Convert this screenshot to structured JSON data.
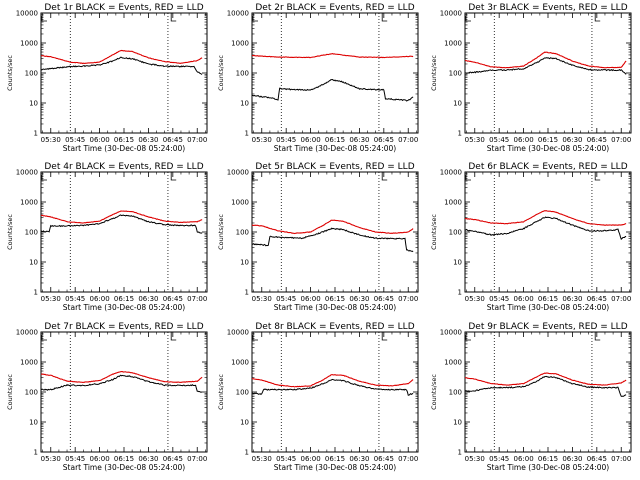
{
  "colors": {
    "events": "#000000",
    "lld": "#dd0000",
    "background": "#ffffff"
  },
  "chart_data": {
    "type": "line",
    "layout": "3x3 grid",
    "yscale": "log",
    "ylim": [
      1,
      10000
    ],
    "yticks": [
      "1",
      "10",
      "100",
      "1000",
      "10000"
    ],
    "ylabel": "Counts/sec",
    "xlabel": "Start Time (30-Dec-08 05:24:00)",
    "xlim": [
      "05:24",
      "07:06"
    ],
    "xticks": [
      "05:30",
      "05:45",
      "06:00",
      "06:15",
      "06:30",
      "06:45",
      "07:00"
    ],
    "marker_lines": [
      "05:42",
      "06:42"
    ],
    "top_marker": "06:44",
    "grid": false,
    "legend": "none",
    "panels": [
      {
        "title": "Det 1r BLACK = Events, RED = LLD",
        "series": [
          {
            "name": "Events",
            "color": "#000000",
            "x": [
              "05:24",
              "05:30",
              "05:42",
              "05:50",
              "06:00",
              "06:08",
              "06:13",
              "06:20",
              "06:30",
              "06:40",
              "06:50",
              "06:58",
              "07:00",
              "07:03"
            ],
            "y": [
              130,
              140,
              165,
              170,
              185,
              250,
              330,
              300,
              200,
              170,
              165,
              165,
              110,
              90
            ]
          },
          {
            "name": "LLD",
            "color": "#dd0000",
            "x": [
              "05:24",
              "05:30",
              "05:42",
              "05:50",
              "06:00",
              "06:08",
              "06:13",
              "06:20",
              "06:30",
              "06:40",
              "06:50",
              "07:00",
              "07:03"
            ],
            "y": [
              380,
              350,
              230,
              210,
              230,
              400,
              560,
              520,
              320,
              240,
              210,
              260,
              320
            ]
          }
        ]
      },
      {
        "title": "Det 2r BLACK = Events, RED = LLD",
        "series": [
          {
            "name": "Events",
            "color": "#000000",
            "x": [
              "05:24",
              "05:35",
              "05:40",
              "05:41",
              "05:50",
              "06:00",
              "06:05",
              "06:13",
              "06:20",
              "06:30",
              "06:40",
              "06:45",
              "06:46",
              "07:00",
              "07:03"
            ],
            "y": [
              18,
              15,
              13,
              30,
              28,
              27,
              35,
              60,
              50,
              30,
              28,
              28,
              14,
              12,
              16
            ]
          },
          {
            "name": "LLD",
            "color": "#dd0000",
            "x": [
              "05:24",
              "05:40",
              "06:00",
              "06:13",
              "06:30",
              "06:46",
              "07:03"
            ],
            "y": [
              380,
              340,
              330,
              440,
              340,
              330,
              360
            ]
          }
        ]
      },
      {
        "title": "Det 3r BLACK = Events, RED = LLD",
        "series": [
          {
            "name": "Events",
            "color": "#000000",
            "x": [
              "05:24",
              "05:30",
              "05:40",
              "05:50",
              "06:00",
              "06:08",
              "06:13",
              "06:20",
              "06:30",
              "06:40",
              "06:50",
              "07:00",
              "07:03"
            ],
            "y": [
              100,
              105,
              125,
              125,
              140,
              220,
              320,
              300,
              180,
              130,
              125,
              125,
              90
            ]
          },
          {
            "name": "LLD",
            "color": "#dd0000",
            "x": [
              "05:24",
              "05:30",
              "05:40",
              "05:50",
              "06:00",
              "06:08",
              "06:13",
              "06:20",
              "06:30",
              "06:40",
              "06:50",
              "07:00",
              "07:03"
            ],
            "y": [
              260,
              230,
              160,
              150,
              170,
              320,
              500,
              440,
              250,
              170,
              150,
              155,
              250
            ]
          }
        ]
      },
      {
        "title": "Det 4r BLACK = Events, RED = LLD",
        "series": [
          {
            "name": "Events",
            "color": "#000000",
            "x": [
              "05:24",
              "05:29",
              "05:30",
              "05:40",
              "05:50",
              "06:00",
              "06:08",
              "06:13",
              "06:20",
              "06:30",
              "06:40",
              "06:50",
              "06:59",
              "07:00",
              "07:03"
            ],
            "y": [
              110,
              100,
              160,
              160,
              165,
              190,
              280,
              360,
              340,
              220,
              175,
              165,
              165,
              100,
              90
            ]
          },
          {
            "name": "LLD",
            "color": "#dd0000",
            "x": [
              "05:24",
              "05:30",
              "05:40",
              "05:50",
              "06:00",
              "06:08",
              "06:13",
              "06:20",
              "06:30",
              "06:40",
              "06:50",
              "07:00",
              "07:03"
            ],
            "y": [
              360,
              320,
              220,
              200,
              230,
              380,
              500,
              480,
              320,
              230,
              210,
              220,
              260
            ]
          }
        ]
      },
      {
        "title": "Det 5r BLACK = Events, RED = LLD",
        "series": [
          {
            "name": "Events",
            "color": "#000000",
            "x": [
              "05:24",
              "05:30",
              "05:34",
              "05:35",
              "05:45",
              "05:55",
              "06:05",
              "06:13",
              "06:20",
              "06:30",
              "06:40",
              "06:50",
              "06:58",
              "06:59",
              "07:03"
            ],
            "y": [
              40,
              38,
              35,
              70,
              65,
              62,
              90,
              130,
              120,
              80,
              62,
              60,
              60,
              25,
              22
            ]
          },
          {
            "name": "LLD",
            "color": "#dd0000",
            "x": [
              "05:24",
              "05:30",
              "05:40",
              "05:50",
              "06:00",
              "06:08",
              "06:13",
              "06:20",
              "06:30",
              "06:40",
              "06:50",
              "07:00",
              "07:03"
            ],
            "y": [
              170,
              160,
              110,
              90,
              100,
              170,
              250,
              230,
              140,
              100,
              90,
              100,
              130
            ]
          }
        ]
      },
      {
        "title": "Det 6r BLACK = Events, RED = LLD",
        "series": [
          {
            "name": "Events",
            "color": "#000000",
            "x": [
              "05:24",
              "05:30",
              "05:40",
              "05:50",
              "06:00",
              "06:08",
              "06:13",
              "06:20",
              "06:30",
              "06:40",
              "06:50",
              "06:58",
              "07:00",
              "07:03"
            ],
            "y": [
              120,
              105,
              80,
              90,
              130,
              220,
              310,
              280,
              170,
              110,
              110,
              120,
              60,
              70
            ]
          },
          {
            "name": "LLD",
            "color": "#dd0000",
            "x": [
              "05:24",
              "05:30",
              "05:40",
              "05:50",
              "06:00",
              "06:08",
              "06:13",
              "06:20",
              "06:30",
              "06:40",
              "06:50",
              "07:00",
              "07:03"
            ],
            "y": [
              280,
              260,
              200,
              190,
              220,
              380,
              520,
              460,
              280,
              190,
              170,
              170,
              190
            ]
          }
        ]
      },
      {
        "title": "Det 7r BLACK = Events, RED = LLD",
        "series": [
          {
            "name": "Events",
            "color": "#000000",
            "x": [
              "05:24",
              "05:30",
              "05:40",
              "05:50",
              "06:00",
              "06:08",
              "06:13",
              "06:20",
              "06:30",
              "06:40",
              "06:50",
              "06:59",
              "07:00",
              "07:03"
            ],
            "y": [
              120,
              120,
              170,
              165,
              190,
              260,
              360,
              330,
              220,
              170,
              165,
              170,
              110,
              100
            ]
          },
          {
            "name": "LLD",
            "color": "#dd0000",
            "x": [
              "05:24",
              "05:30",
              "05:40",
              "05:50",
              "06:00",
              "06:08",
              "06:13",
              "06:20",
              "06:30",
              "06:40",
              "06:50",
              "07:00",
              "07:03"
            ],
            "y": [
              400,
              360,
              230,
              210,
              240,
              390,
              480,
              440,
              300,
              220,
              210,
              230,
              310
            ]
          }
        ]
      },
      {
        "title": "Det 8r BLACK = Events, RED = LLD",
        "series": [
          {
            "name": "Events",
            "color": "#000000",
            "x": [
              "05:24",
              "05:30",
              "05:31",
              "05:40",
              "05:50",
              "06:00",
              "06:08",
              "06:13",
              "06:20",
              "06:30",
              "06:40",
              "06:50",
              "06:59",
              "07:00",
              "07:03"
            ],
            "y": [
              90,
              85,
              120,
              120,
              120,
              135,
              190,
              260,
              240,
              160,
              125,
              120,
              120,
              80,
              90
            ]
          },
          {
            "name": "LLD",
            "color": "#dd0000",
            "x": [
              "05:24",
              "05:30",
              "05:40",
              "05:50",
              "06:00",
              "06:08",
              "06:13",
              "06:20",
              "06:30",
              "06:40",
              "06:50",
              "07:00",
              "07:03"
            ],
            "y": [
              280,
              250,
              170,
              150,
              160,
              260,
              380,
              360,
              230,
              170,
              160,
              190,
              260
            ]
          }
        ]
      },
      {
        "title": "Det 9r BLACK = Events, RED = LLD",
        "series": [
          {
            "name": "Events",
            "color": "#000000",
            "x": [
              "05:24",
              "05:30",
              "05:40",
              "05:50",
              "06:00",
              "06:08",
              "06:13",
              "06:20",
              "06:30",
              "06:40",
              "06:50",
              "06:58",
              "07:00",
              "07:03"
            ],
            "y": [
              110,
              110,
              140,
              140,
              150,
              220,
              330,
              300,
              190,
              145,
              140,
              140,
              70,
              80
            ]
          },
          {
            "name": "LLD",
            "color": "#dd0000",
            "x": [
              "05:24",
              "05:30",
              "05:40",
              "05:50",
              "06:00",
              "06:08",
              "06:13",
              "06:20",
              "06:30",
              "06:40",
              "06:50",
              "07:00",
              "07:03"
            ],
            "y": [
              300,
              270,
              190,
              170,
              190,
              320,
              430,
              400,
              250,
              180,
              170,
              200,
              250
            ]
          }
        ]
      }
    ]
  }
}
